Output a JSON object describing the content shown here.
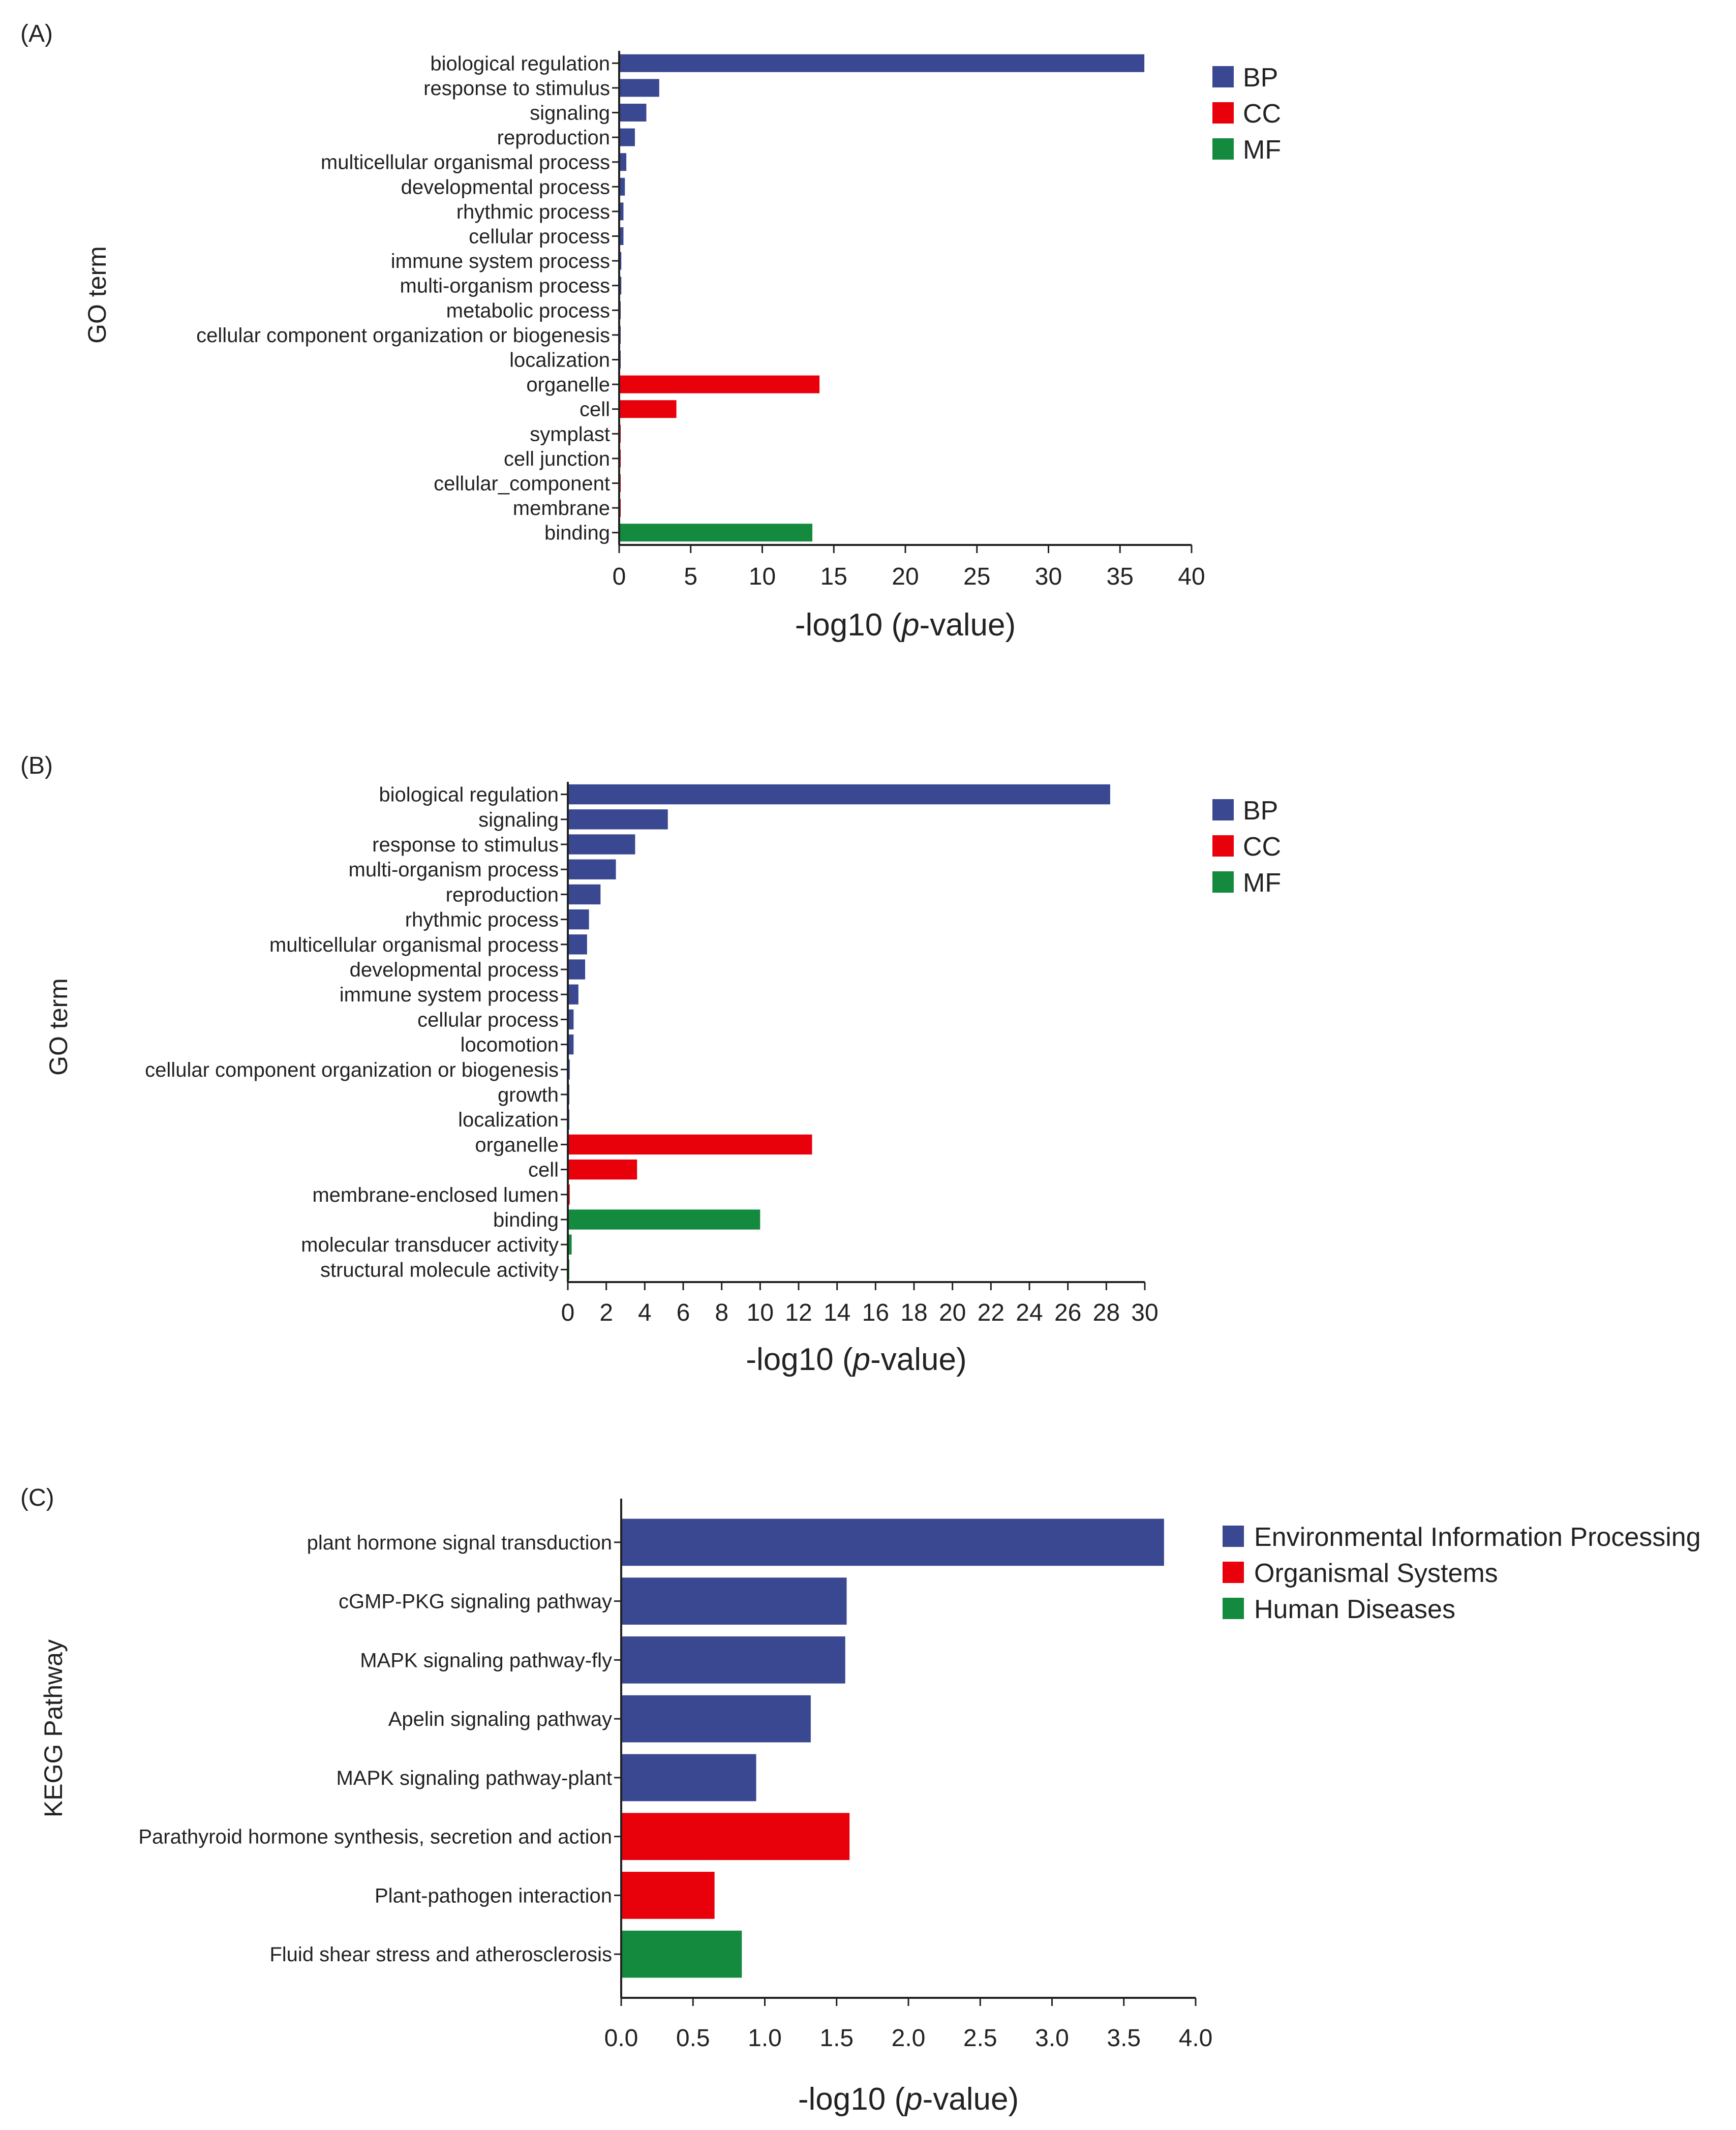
{
  "chart_data": [
    {
      "type": "bar",
      "orientation": "horizontal",
      "panel_label": "(A)",
      "ylabel": "GO term",
      "xlabel_prefix": "-log10 (",
      "xlabel_italic": "p",
      "xlabel_suffix": "-value)",
      "xlim": [
        0,
        40
      ],
      "xticks": [
        "0",
        "5",
        "10",
        "15",
        "20",
        "25",
        "30",
        "35",
        "40"
      ],
      "legend_position": "top-right",
      "legend": [
        {
          "key": "BP",
          "label": "BP",
          "color": "#3a4891"
        },
        {
          "key": "CC",
          "label": "CC",
          "color": "#e8000b"
        },
        {
          "key": "MF",
          "label": "MF",
          "color": "#138a3e"
        }
      ],
      "categories": [
        "biological regulation",
        "response to stimulus",
        "signaling",
        "reproduction",
        "multicellular organismal process",
        "developmental process",
        "rhythmic process",
        "cellular process",
        "immune system process",
        "multi-organism process",
        "metabolic process",
        "cellular component organization or biogenesis",
        "localization",
        "organelle",
        "cell",
        "symplast",
        "cell junction",
        "cellular_component",
        "membrane",
        "binding"
      ],
      "groups": [
        "BP",
        "BP",
        "BP",
        "BP",
        "BP",
        "BP",
        "BP",
        "BP",
        "BP",
        "BP",
        "BP",
        "BP",
        "BP",
        "CC",
        "CC",
        "CC",
        "CC",
        "CC",
        "CC",
        "MF"
      ],
      "values": [
        36.7,
        2.8,
        1.9,
        1.1,
        0.5,
        0.4,
        0.3,
        0.3,
        0.15,
        0.15,
        0.05,
        0.05,
        0.05,
        14.0,
        4.0,
        0.05,
        0.05,
        0.05,
        0.05,
        13.5
      ]
    },
    {
      "type": "bar",
      "orientation": "horizontal",
      "panel_label": "(B)",
      "ylabel": "GO term",
      "xlabel_prefix": "-log10 (",
      "xlabel_italic": "p",
      "xlabel_suffix": "-value)",
      "xlim": [
        0,
        30
      ],
      "xticks": [
        "0",
        "2",
        "4",
        "6",
        "8",
        "10",
        "12",
        "14",
        "16",
        "18",
        "20",
        "22",
        "24",
        "26",
        "28",
        "30"
      ],
      "legend_position": "top-right",
      "legend": [
        {
          "key": "BP",
          "label": "BP",
          "color": "#3a4891"
        },
        {
          "key": "CC",
          "label": "CC",
          "color": "#e8000b"
        },
        {
          "key": "MF",
          "label": "MF",
          "color": "#138a3e"
        }
      ],
      "categories": [
        "biological regulation",
        "signaling",
        "response to stimulus",
        "multi-organism process",
        "reproduction",
        "rhythmic process",
        "multicellular organismal process",
        "developmental process",
        "immune system process",
        "cellular process",
        "locomotion",
        "cellular component organization or biogenesis",
        "growth",
        "localization",
        "organelle",
        "cell",
        "membrane-enclosed lumen",
        "binding",
        "molecular transducer activity",
        "structural molecule activity"
      ],
      "groups": [
        "BP",
        "BP",
        "BP",
        "BP",
        "BP",
        "BP",
        "BP",
        "BP",
        "BP",
        "BP",
        "BP",
        "BP",
        "BP",
        "BP",
        "CC",
        "CC",
        "CC",
        "MF",
        "MF",
        "MF"
      ],
      "values": [
        28.2,
        5.2,
        3.5,
        2.5,
        1.7,
        1.1,
        1.0,
        0.9,
        0.55,
        0.3,
        0.3,
        0.1,
        0.05,
        0.05,
        12.7,
        3.6,
        0.1,
        10.0,
        0.2,
        0.05
      ]
    },
    {
      "type": "bar",
      "orientation": "horizontal",
      "panel_label": "(C)",
      "ylabel": "KEGG Pathway",
      "xlabel_prefix": "-log10 (",
      "xlabel_italic": "p",
      "xlabel_suffix": "-value)",
      "xlim": [
        0,
        4.0
      ],
      "xticks": [
        "0.0",
        "0.5",
        "1.0",
        "1.5",
        "2.0",
        "2.5",
        "3.0",
        "3.5",
        "4.0"
      ],
      "legend_position": "top-right",
      "legend": [
        {
          "key": "EIP",
          "label": "Environmental Information Processing",
          "color": "#3a4891"
        },
        {
          "key": "OS",
          "label": "Organismal Systems",
          "color": "#e8000b"
        },
        {
          "key": "HD",
          "label": "Human Diseases",
          "color": "#138a3e"
        }
      ],
      "categories": [
        "plant hormone signal transduction",
        "cGMP-PKG signaling pathway",
        "MAPK signaling pathway-fly",
        "Apelin signaling pathway",
        "MAPK signaling pathway-plant",
        "Parathyroid hormone synthesis, secretion and action",
        "Plant-pathogen interaction",
        "Fluid shear stress and atherosclerosis"
      ],
      "groups": [
        "EIP",
        "EIP",
        "EIP",
        "EIP",
        "EIP",
        "OS",
        "OS",
        "HD"
      ],
      "values": [
        3.78,
        1.57,
        1.56,
        1.32,
        0.94,
        1.59,
        0.65,
        0.84
      ]
    }
  ]
}
